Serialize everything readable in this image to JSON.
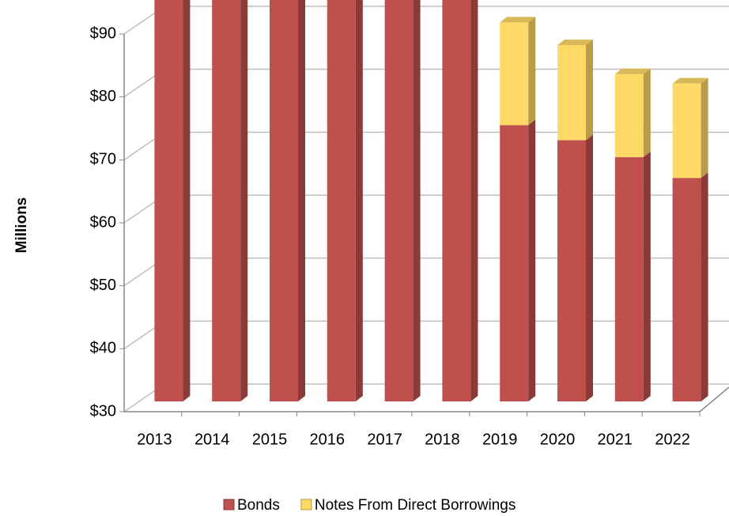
{
  "chart_data": {
    "type": "bar3d_stacked",
    "y_label": "Millions",
    "categories": [
      "2013",
      "2014",
      "2015",
      "2016",
      "2017",
      "2018",
      "2019",
      "2020",
      "2021",
      "2022"
    ],
    "series": [
      {
        "name": "Bonds",
        "color": "#c0504d",
        "values": [
          80.3,
          78.7,
          76.9,
          74.9,
          73.3,
          71.4,
          43.9,
          41.5,
          38.8,
          35.5
        ]
      },
      {
        "name": "Notes From Direct Borrowings",
        "color": "#ffd966",
        "values": [
          8.7,
          10.3,
          9.2,
          13.1,
          16.6,
          15.6,
          16.3,
          15.1,
          13.2,
          15.0
        ]
      }
    ],
    "ylim": [
      30,
      90
    ],
    "yticks": [
      {
        "value": 30,
        "label": "$30"
      },
      {
        "value": 40,
        "label": "$40"
      },
      {
        "value": 50,
        "label": "$50"
      },
      {
        "value": 60,
        "label": "$60"
      },
      {
        "value": 70,
        "label": "$70"
      },
      {
        "value": 80,
        "label": "$80"
      },
      {
        "value": 90,
        "label": "$90"
      }
    ],
    "grid": true
  }
}
